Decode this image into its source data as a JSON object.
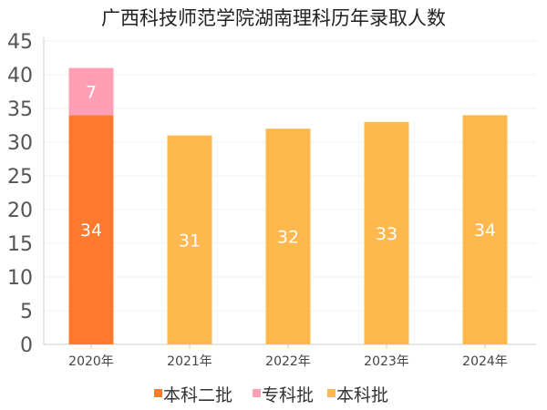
{
  "chart_data": {
    "type": "bar",
    "stacked": true,
    "title": "广西科技师范学院湖南理科历年录取人数",
    "categories": [
      "2020年",
      "2021年",
      "2022年",
      "2023年",
      "2024年"
    ],
    "series": [
      {
        "name": "本科二批",
        "color": "#ff7a2f",
        "values": [
          34,
          null,
          null,
          null,
          null
        ]
      },
      {
        "name": "专科批",
        "color": "#ff9fb5",
        "values": [
          7,
          null,
          null,
          null,
          null
        ]
      },
      {
        "name": "本科批",
        "color": "#ffb84d",
        "values": [
          null,
          31,
          32,
          33,
          34
        ]
      }
    ],
    "ylim": [
      0,
      45
    ],
    "yticks": [
      0,
      5,
      10,
      15,
      20,
      25,
      30,
      35,
      40,
      45
    ],
    "legend_position": "bottom",
    "xlabel": "",
    "ylabel": ""
  }
}
